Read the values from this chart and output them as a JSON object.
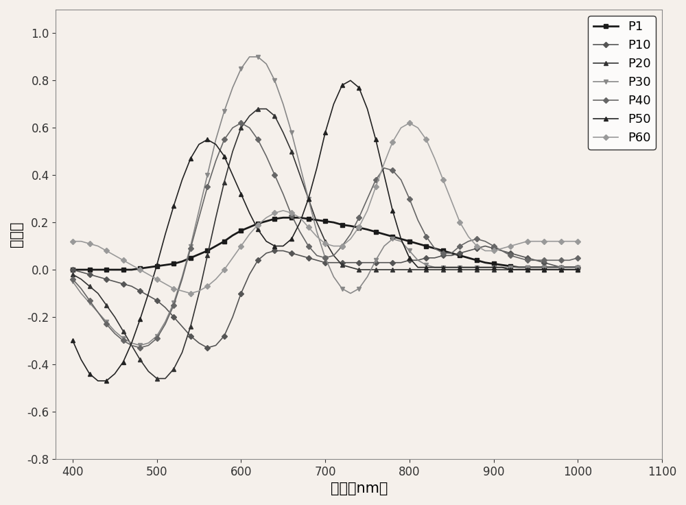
{
  "title": "",
  "xlabel": "波长（nm）",
  "ylabel": "偏振度",
  "xlim": [
    380,
    1100
  ],
  "ylim": [
    -0.8,
    1.1
  ],
  "xticks": [
    400,
    500,
    600,
    700,
    800,
    900,
    1000,
    1100
  ],
  "yticks": [
    -0.8,
    -0.6,
    -0.4,
    -0.2,
    0.0,
    0.2,
    0.4,
    0.6,
    0.8,
    1.0
  ],
  "series": [
    {
      "label": "P1",
      "color": "#1a1a1a",
      "marker": "s",
      "markersize": 4,
      "linewidth": 2.0,
      "x": [
        400,
        410,
        420,
        430,
        440,
        450,
        460,
        470,
        480,
        490,
        500,
        510,
        520,
        530,
        540,
        550,
        560,
        570,
        580,
        590,
        600,
        610,
        620,
        630,
        640,
        650,
        660,
        670,
        680,
        690,
        700,
        710,
        720,
        730,
        740,
        750,
        760,
        770,
        780,
        790,
        800,
        810,
        820,
        830,
        840,
        850,
        860,
        870,
        880,
        890,
        900,
        910,
        920,
        930,
        940,
        950,
        960,
        970,
        980,
        990,
        1000
      ],
      "y": [
        0.0,
        0.0,
        0.0,
        0.0,
        0.0,
        0.0,
        0.0,
        0.0,
        0.005,
        0.01,
        0.015,
        0.02,
        0.025,
        0.035,
        0.05,
        0.065,
        0.08,
        0.1,
        0.12,
        0.145,
        0.165,
        0.18,
        0.195,
        0.205,
        0.215,
        0.22,
        0.22,
        0.22,
        0.215,
        0.21,
        0.205,
        0.2,
        0.19,
        0.185,
        0.178,
        0.17,
        0.16,
        0.15,
        0.14,
        0.13,
        0.12,
        0.11,
        0.1,
        0.09,
        0.08,
        0.07,
        0.06,
        0.05,
        0.04,
        0.03,
        0.025,
        0.02,
        0.015,
        0.01,
        0.01,
        0.01,
        0.01,
        0.01,
        0.01,
        0.01,
        0.01
      ]
    },
    {
      "label": "P10",
      "color": "#555555",
      "marker": "D",
      "markersize": 4,
      "linewidth": 1.2,
      "x": [
        400,
        410,
        420,
        430,
        440,
        450,
        460,
        470,
        480,
        490,
        500,
        510,
        520,
        530,
        540,
        550,
        560,
        570,
        580,
        590,
        600,
        610,
        620,
        630,
        640,
        650,
        660,
        670,
        680,
        690,
        700,
        710,
        720,
        730,
        740,
        750,
        760,
        770,
        780,
        790,
        800,
        810,
        820,
        830,
        840,
        850,
        860,
        870,
        880,
        890,
        900,
        910,
        920,
        930,
        940,
        950,
        960,
        970,
        980,
        990,
        1000
      ],
      "y": [
        0.0,
        -0.01,
        -0.02,
        -0.03,
        -0.04,
        -0.05,
        -0.06,
        -0.07,
        -0.09,
        -0.11,
        -0.13,
        -0.16,
        -0.2,
        -0.24,
        -0.28,
        -0.31,
        -0.33,
        -0.32,
        -0.28,
        -0.2,
        -0.1,
        -0.02,
        0.04,
        0.07,
        0.08,
        0.08,
        0.07,
        0.06,
        0.05,
        0.04,
        0.03,
        0.03,
        0.03,
        0.03,
        0.03,
        0.03,
        0.03,
        0.03,
        0.03,
        0.03,
        0.04,
        0.04,
        0.05,
        0.05,
        0.06,
        0.06,
        0.07,
        0.08,
        0.09,
        0.1,
        0.09,
        0.08,
        0.07,
        0.06,
        0.05,
        0.04,
        0.03,
        0.02,
        0.01,
        0.01,
        0.01
      ]
    },
    {
      "label": "P20",
      "color": "#333333",
      "marker": "^",
      "markersize": 5,
      "linewidth": 1.2,
      "x": [
        400,
        410,
        420,
        430,
        440,
        450,
        460,
        470,
        480,
        490,
        500,
        510,
        520,
        530,
        540,
        550,
        560,
        570,
        580,
        590,
        600,
        610,
        620,
        630,
        640,
        650,
        660,
        670,
        680,
        690,
        700,
        710,
        720,
        730,
        740,
        750,
        760,
        770,
        780,
        790,
        800,
        810,
        820,
        830,
        840,
        850,
        860,
        870,
        880,
        890,
        900,
        910,
        920,
        930,
        940,
        950,
        960,
        970,
        980,
        990,
        1000
      ],
      "y": [
        -0.02,
        -0.04,
        -0.07,
        -0.1,
        -0.15,
        -0.2,
        -0.26,
        -0.32,
        -0.38,
        -0.43,
        -0.46,
        -0.46,
        -0.42,
        -0.35,
        -0.24,
        -0.1,
        0.06,
        0.22,
        0.37,
        0.5,
        0.6,
        0.65,
        0.68,
        0.68,
        0.65,
        0.58,
        0.5,
        0.4,
        0.3,
        0.2,
        0.12,
        0.06,
        0.02,
        0.01,
        0.0,
        0.0,
        0.0,
        0.0,
        0.0,
        0.0,
        0.0,
        0.0,
        0.0,
        0.0,
        0.0,
        0.0,
        0.0,
        0.0,
        0.0,
        0.0,
        0.0,
        0.0,
        0.0,
        0.0,
        0.0,
        0.0,
        0.0,
        0.0,
        0.0,
        0.0,
        0.0
      ]
    },
    {
      "label": "P30",
      "color": "#888888",
      "marker": "v",
      "markersize": 5,
      "linewidth": 1.2,
      "x": [
        400,
        410,
        420,
        430,
        440,
        450,
        460,
        470,
        480,
        490,
        500,
        510,
        520,
        530,
        540,
        550,
        560,
        570,
        580,
        590,
        600,
        610,
        620,
        630,
        640,
        650,
        660,
        670,
        680,
        690,
        700,
        710,
        720,
        730,
        740,
        750,
        760,
        770,
        780,
        790,
        800,
        810,
        820,
        830,
        840,
        850,
        860,
        870,
        880,
        890,
        900,
        910,
        920,
        930,
        940,
        950,
        960,
        970,
        980,
        990,
        1000
      ],
      "y": [
        -0.05,
        -0.1,
        -0.14,
        -0.18,
        -0.22,
        -0.26,
        -0.29,
        -0.31,
        -0.32,
        -0.31,
        -0.28,
        -0.22,
        -0.14,
        -0.03,
        0.1,
        0.25,
        0.4,
        0.55,
        0.67,
        0.77,
        0.85,
        0.9,
        0.9,
        0.87,
        0.8,
        0.7,
        0.58,
        0.44,
        0.3,
        0.16,
        0.05,
        -0.03,
        -0.08,
        -0.1,
        -0.08,
        -0.03,
        0.04,
        0.1,
        0.13,
        0.12,
        0.08,
        0.04,
        0.02,
        0.01,
        0.01,
        0.01,
        0.01,
        0.01,
        0.01,
        0.01,
        0.01,
        0.01,
        0.01,
        0.01,
        0.01,
        0.01,
        0.01,
        0.01,
        0.01,
        0.01,
        0.01
      ]
    },
    {
      "label": "P40",
      "color": "#666666",
      "marker": "D",
      "markersize": 4,
      "linewidth": 1.2,
      "x": [
        400,
        410,
        420,
        430,
        440,
        450,
        460,
        470,
        480,
        490,
        500,
        510,
        520,
        530,
        540,
        550,
        560,
        570,
        580,
        590,
        600,
        610,
        620,
        630,
        640,
        650,
        660,
        670,
        680,
        690,
        700,
        710,
        720,
        730,
        740,
        750,
        760,
        770,
        780,
        790,
        800,
        810,
        820,
        830,
        840,
        850,
        860,
        870,
        880,
        890,
        900,
        910,
        920,
        930,
        940,
        950,
        960,
        970,
        980,
        990,
        1000
      ],
      "y": [
        -0.04,
        -0.08,
        -0.13,
        -0.18,
        -0.23,
        -0.27,
        -0.3,
        -0.32,
        -0.33,
        -0.32,
        -0.29,
        -0.23,
        -0.15,
        -0.04,
        0.09,
        0.22,
        0.35,
        0.46,
        0.55,
        0.6,
        0.62,
        0.6,
        0.55,
        0.48,
        0.4,
        0.32,
        0.23,
        0.16,
        0.1,
        0.06,
        0.05,
        0.06,
        0.1,
        0.15,
        0.22,
        0.3,
        0.38,
        0.43,
        0.42,
        0.38,
        0.3,
        0.21,
        0.14,
        0.09,
        0.07,
        0.07,
        0.1,
        0.12,
        0.13,
        0.12,
        0.1,
        0.08,
        0.06,
        0.05,
        0.04,
        0.04,
        0.04,
        0.04,
        0.04,
        0.04,
        0.05
      ]
    },
    {
      "label": "P50",
      "color": "#222222",
      "marker": "^",
      "markersize": 5,
      "linewidth": 1.2,
      "x": [
        400,
        410,
        420,
        430,
        440,
        450,
        460,
        470,
        480,
        490,
        500,
        510,
        520,
        530,
        540,
        550,
        560,
        570,
        580,
        590,
        600,
        610,
        620,
        630,
        640,
        650,
        660,
        670,
        680,
        690,
        700,
        710,
        720,
        730,
        740,
        750,
        760,
        770,
        780,
        790,
        800,
        810,
        820,
        830,
        840,
        850,
        860,
        870,
        880,
        890,
        900,
        910,
        920,
        930,
        940,
        950,
        960,
        970,
        980,
        990,
        1000
      ],
      "y": [
        -0.3,
        -0.38,
        -0.44,
        -0.47,
        -0.47,
        -0.44,
        -0.39,
        -0.31,
        -0.21,
        -0.1,
        0.02,
        0.15,
        0.27,
        0.38,
        0.47,
        0.53,
        0.55,
        0.53,
        0.48,
        0.4,
        0.32,
        0.24,
        0.17,
        0.12,
        0.1,
        0.1,
        0.13,
        0.2,
        0.3,
        0.43,
        0.58,
        0.7,
        0.78,
        0.8,
        0.77,
        0.68,
        0.55,
        0.4,
        0.25,
        0.13,
        0.05,
        0.01,
        0.01,
        0.01,
        0.01,
        0.01,
        0.01,
        0.01,
        0.01,
        0.01,
        0.01,
        0.01,
        0.0,
        0.0,
        0.0,
        0.0,
        0.0,
        0.0,
        0.0,
        0.0,
        0.0
      ]
    },
    {
      "label": "P60",
      "color": "#999999",
      "marker": "D",
      "markersize": 4,
      "linewidth": 1.2,
      "x": [
        400,
        410,
        420,
        430,
        440,
        450,
        460,
        470,
        480,
        490,
        500,
        510,
        520,
        530,
        540,
        550,
        560,
        570,
        580,
        590,
        600,
        610,
        620,
        630,
        640,
        650,
        660,
        670,
        680,
        690,
        700,
        710,
        720,
        730,
        740,
        750,
        760,
        770,
        780,
        790,
        800,
        810,
        820,
        830,
        840,
        850,
        860,
        870,
        880,
        890,
        900,
        910,
        920,
        930,
        940,
        950,
        960,
        970,
        980,
        990,
        1000
      ],
      "y": [
        0.12,
        0.12,
        0.11,
        0.1,
        0.08,
        0.06,
        0.04,
        0.02,
        0.0,
        -0.02,
        -0.04,
        -0.06,
        -0.08,
        -0.09,
        -0.1,
        -0.09,
        -0.07,
        -0.04,
        0.0,
        0.05,
        0.1,
        0.15,
        0.19,
        0.22,
        0.24,
        0.25,
        0.24,
        0.22,
        0.18,
        0.14,
        0.11,
        0.1,
        0.1,
        0.13,
        0.18,
        0.25,
        0.35,
        0.45,
        0.54,
        0.6,
        0.62,
        0.6,
        0.55,
        0.47,
        0.38,
        0.29,
        0.2,
        0.14,
        0.1,
        0.08,
        0.08,
        0.09,
        0.1,
        0.11,
        0.12,
        0.12,
        0.12,
        0.12,
        0.12,
        0.12,
        0.12
      ]
    }
  ],
  "background_color": "#f5f0eb",
  "plot_bg_color": "#f5f0eb",
  "legend_fontsize": 13,
  "axis_fontsize": 15,
  "tick_fontsize": 12
}
